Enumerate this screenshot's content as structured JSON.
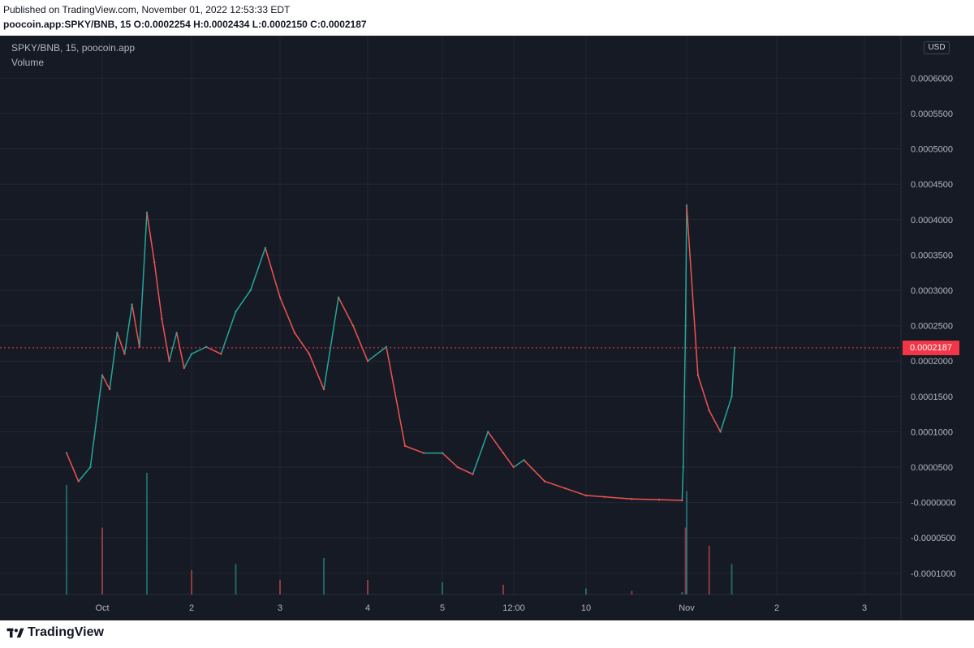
{
  "header": {
    "published": "Published on TradingView.com, November 01, 2022 12:53:33 EDT",
    "ohlc": "poocoin.app:SPKY/BNB, 15  O:0.0002254 H:0.0002434 L:0.0002150 C:0.0002187"
  },
  "legend": {
    "symbol": "SPKY/BNB, 15, poocoin.app",
    "volume": "Volume"
  },
  "currency_button": "USD",
  "last_price_tag": "0.0002187",
  "footer": {
    "brand": "TradingView"
  },
  "colors": {
    "up": "#26a69a",
    "down": "#ef5350",
    "background": "#161a25",
    "grid": "#232733",
    "last_price": "#f23645"
  },
  "chart_data": {
    "type": "line",
    "title": "SPKY/BNB, 15, poocoin.app",
    "xlabel": "",
    "ylabel": "",
    "ylim": [
      -0.00013,
      0.00066
    ],
    "grid": true,
    "x_ticks": [
      "Oct",
      "2",
      "3",
      "4",
      "5",
      "12:00",
      "10",
      "Nov",
      "2",
      "3"
    ],
    "y_ticks": [
      "0.0006000",
      "0.0005500",
      "0.0005000",
      "0.0004500",
      "0.0004000",
      "0.0003500",
      "0.0003000",
      "0.0002500",
      "0.0002000",
      "0.0001500",
      "0.0001000",
      "0.0000500",
      "-0.0000000",
      "-0.0000500",
      "-0.0001000"
    ],
    "y_tick_values": [
      0.0006,
      0.00055,
      0.0005,
      0.00045,
      0.0004,
      0.00035,
      0.0003,
      0.00025,
      0.0002,
      0.00015,
      0.0001,
      5e-05,
      0.0,
      -5e-05,
      -0.0001
    ],
    "last_price": 0.0002187,
    "series": [
      {
        "name": "SPKY/BNB",
        "x": [
          "Sep 30 18:00",
          "Sep 30 20:00",
          "Sep 30 22:00",
          "Oct 1 00:00",
          "Oct 1 02:00",
          "Oct 1 04:00",
          "Oct 1 06:00",
          "Oct 1 08:00",
          "Oct 1 10:00",
          "Oct 1 12:00",
          "Oct 1 14:00",
          "Oct 1 16:00",
          "Oct 1 18:00",
          "Oct 1 20:00",
          "Oct 1 22:00",
          "Oct 2 00:00",
          "Oct 2 04:00",
          "Oct 2 08:00",
          "Oct 2 12:00",
          "Oct 2 16:00",
          "Oct 2 20:00",
          "Oct 3 00:00",
          "Oct 3 04:00",
          "Oct 3 08:00",
          "Oct 3 12:00",
          "Oct 3 16:00",
          "Oct 3 20:00",
          "Oct 4 00:00",
          "Oct 4 06:00",
          "Oct 4 12:00",
          "Oct 4 18:00",
          "Oct 5 00:00",
          "Oct 5 06:00",
          "Oct 5 12:00",
          "Oct 5 18:00",
          "Oct 6 00:00",
          "Oct 6 12:00",
          "Oct 7 00:00",
          "Oct 8 00:00",
          "Oct 9 00:00",
          "Oct 10 00:00",
          "Oct 14 00:00",
          "Oct 20 00:00",
          "Oct 26 00:00",
          "Oct 31 00:00",
          "Oct 31 06:00",
          "Oct 31 12:00",
          "Oct 31 18:00",
          "Nov 1 00:00",
          "Nov 1 03:00",
          "Nov 1 06:00",
          "Nov 1 09:00",
          "Nov 1 12:00",
          "Nov 1 12:45"
        ],
        "values": [
          7e-05,
          3e-05,
          5e-05,
          0.00018,
          0.00016,
          0.00024,
          0.00021,
          0.00028,
          0.00022,
          0.00041,
          0.00034,
          0.00026,
          0.0002,
          0.00024,
          0.00019,
          0.00021,
          0.00022,
          0.00021,
          0.00027,
          0.0003,
          0.00036,
          0.00029,
          0.00024,
          0.00021,
          0.00016,
          0.00029,
          0.00025,
          0.0002,
          0.00022,
          8e-05,
          7e-05,
          7e-05,
          5e-05,
          4e-05,
          0.0001,
          7e-05,
          5e-05,
          6e-05,
          3e-05,
          2e-05,
          1e-05,
          8e-06,
          5e-06,
          4e-06,
          3e-06,
          5e-05,
          0.00015,
          0.00025,
          0.00042,
          0.00018,
          0.00013,
          0.0001,
          0.00015,
          0.0002187
        ]
      }
    ],
    "volume": {
      "name": "Volume",
      "x": [
        "Sep 30 18:00",
        "Oct 1 00:00",
        "Oct 1 12:00",
        "Oct 2 00:00",
        "Oct 2 12:00",
        "Oct 3 00:00",
        "Oct 3 12:00",
        "Oct 4 00:00",
        "Oct 5 00:00",
        "Oct 6 00:00",
        "Oct 10 00:00",
        "Oct 20 00:00",
        "Oct 31 00:00",
        "Oct 31 18:00",
        "Nov 1 00:00",
        "Nov 1 06:00",
        "Nov 1 12:00"
      ],
      "values": [
        0.9,
        0.55,
        1.0,
        0.2,
        0.25,
        0.12,
        0.3,
        0.12,
        0.1,
        0.08,
        0.05,
        0.03,
        0.02,
        0.55,
        0.85,
        0.4,
        0.25
      ]
    }
  }
}
